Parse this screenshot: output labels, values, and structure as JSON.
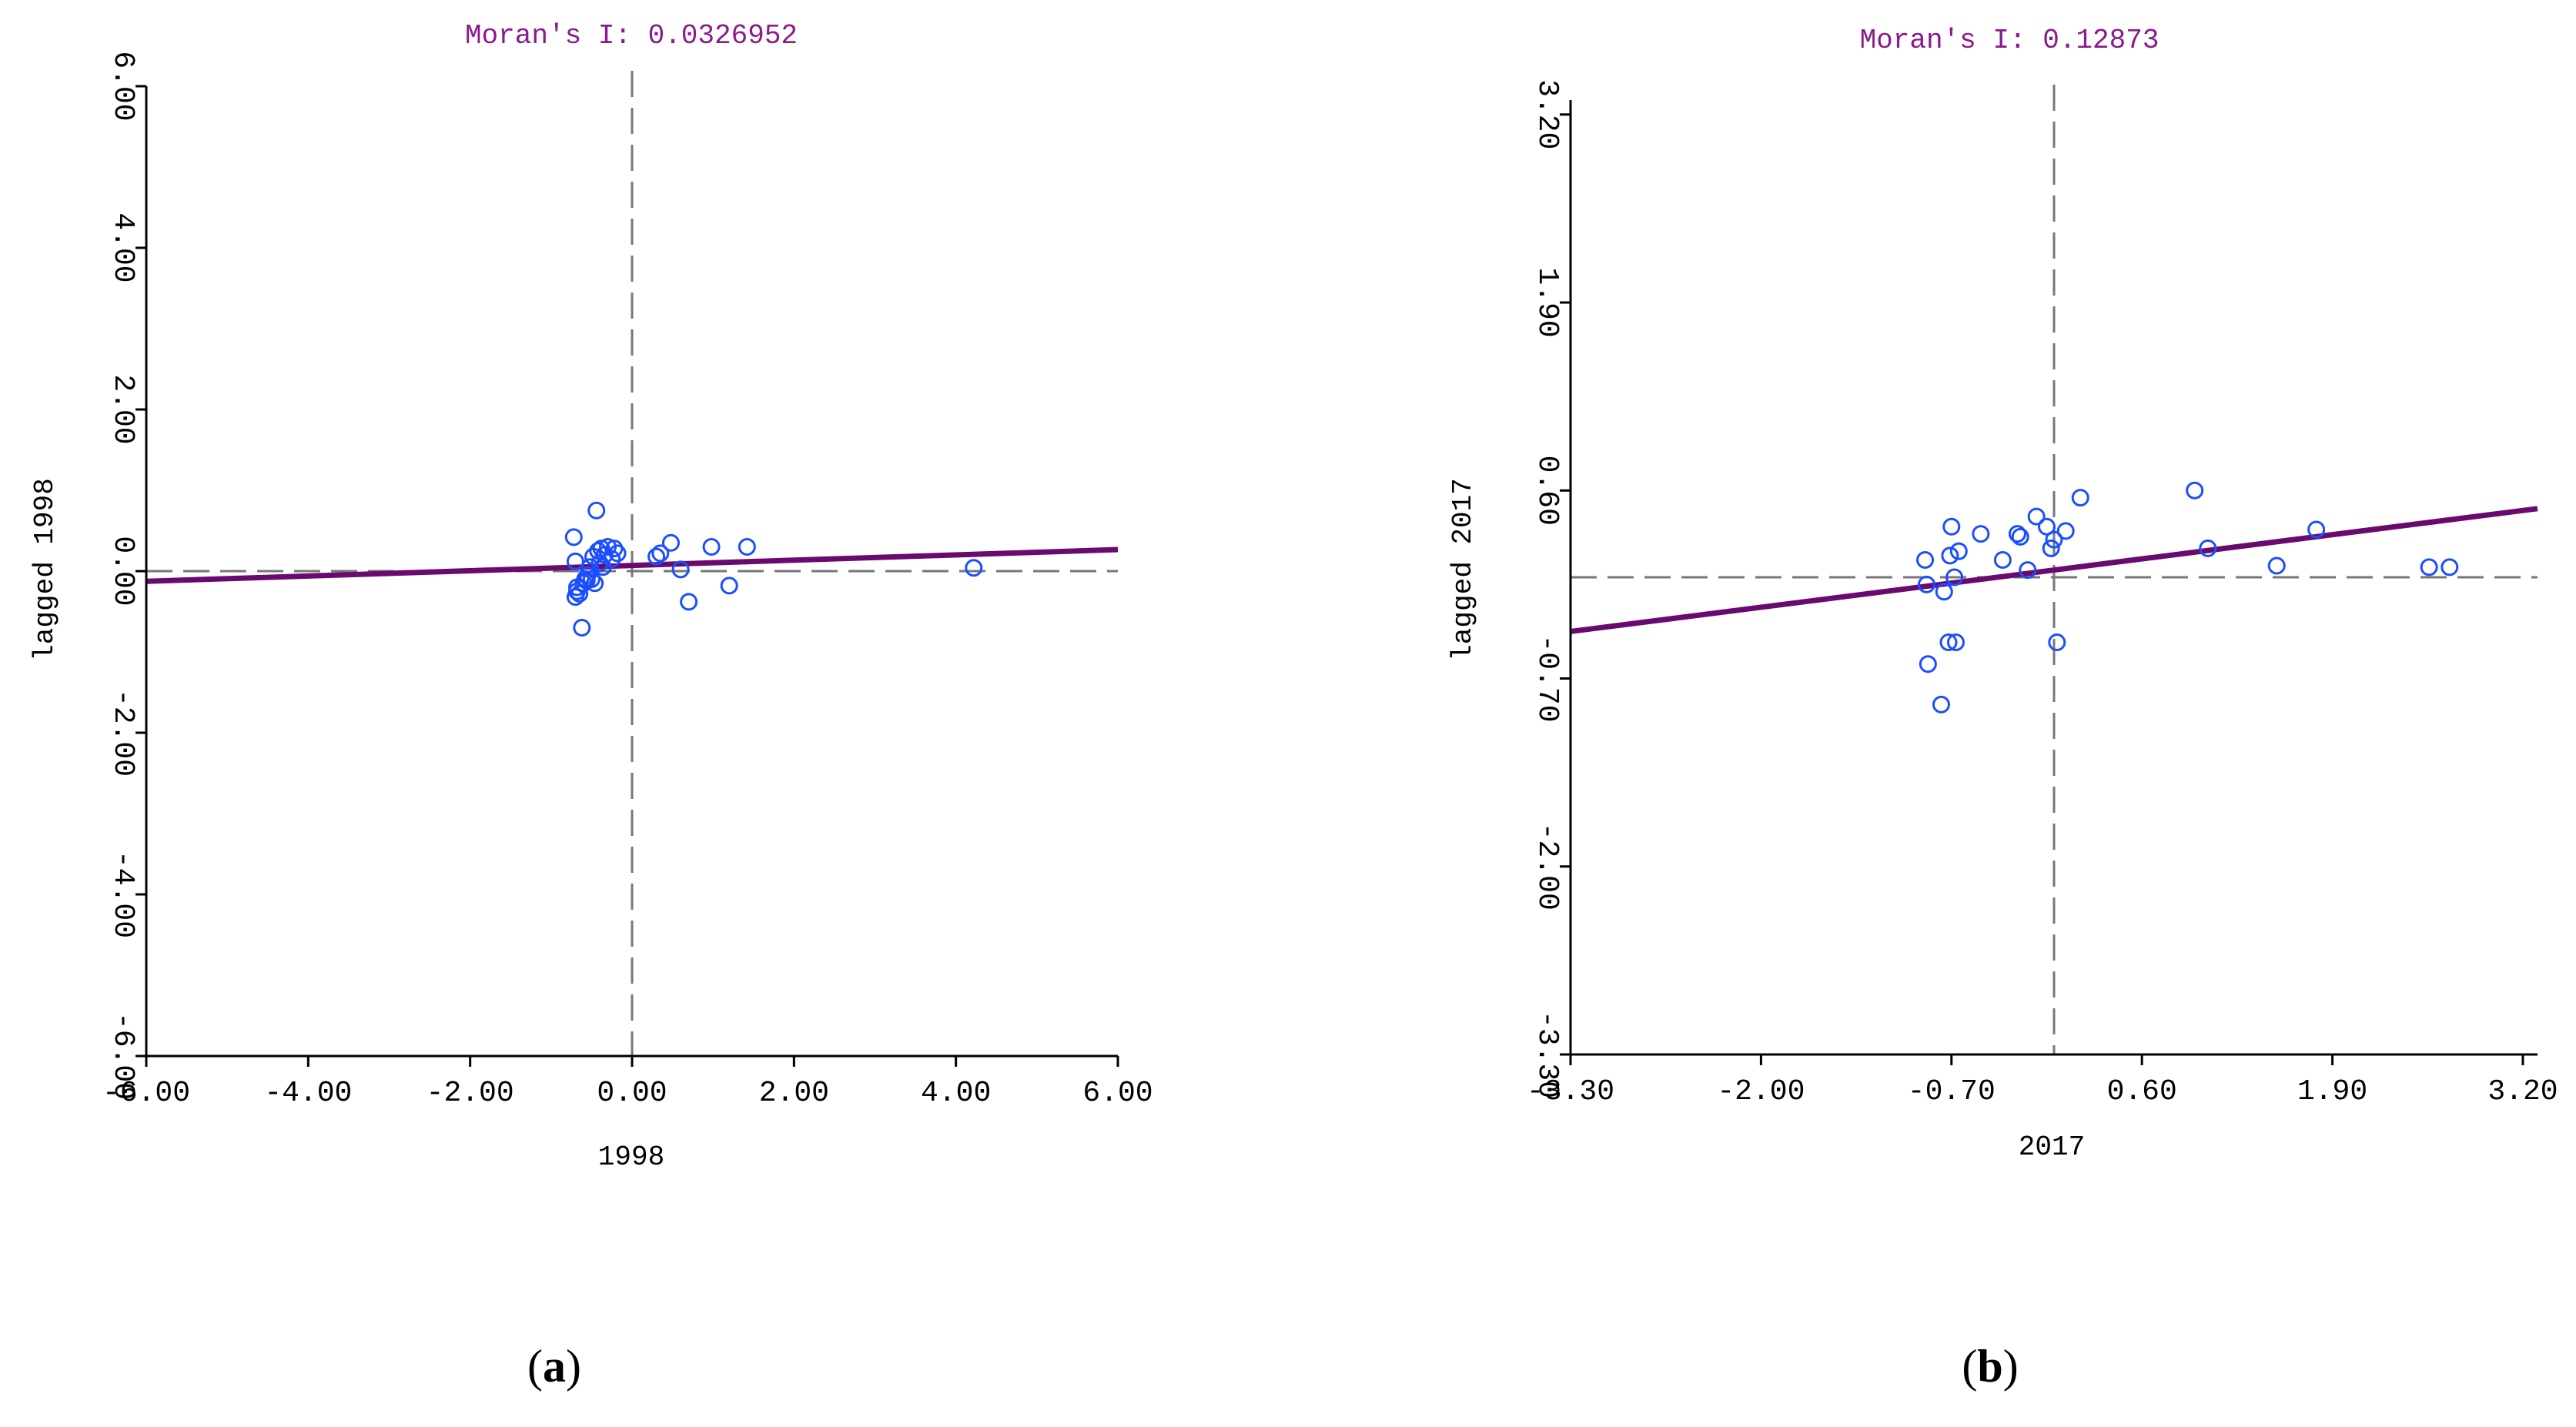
{
  "chart_data": [
    {
      "type": "scatter",
      "panel_caption": "(a)",
      "caption_letter": "a",
      "title": "Moran's I: 0.0326952",
      "xlabel": "1998",
      "ylabel": "lagged 1998",
      "xlim": [
        -6,
        6
      ],
      "ylim": [
        -6,
        6
      ],
      "xticks": [
        -6,
        -4,
        -2,
        0,
        2,
        4,
        6
      ],
      "xtick_labels": [
        "-6.00",
        "-4.00",
        "-2.00",
        "0.00",
        "2.00",
        "4.00",
        "6.00"
      ],
      "yticks": [
        -6,
        -4,
        -2,
        0,
        2,
        4,
        6
      ],
      "ytick_labels": [
        "-6.00",
        "-4.00",
        "-2.00",
        "0.00",
        "2.00",
        "4.00",
        "6.00"
      ],
      "reference_lines": {
        "x": 0,
        "y": 0
      },
      "fit_line": {
        "slope": 0.0326952,
        "intercept": 0.07
      },
      "series": [
        {
          "name": "observations",
          "x": [
            -0.72,
            -0.7,
            -0.68,
            -0.65,
            -0.62,
            -0.6,
            -0.58,
            -0.56,
            -0.55,
            -0.52,
            -0.5,
            -0.48,
            -0.46,
            -0.44,
            -0.42,
            -0.4,
            -0.38,
            -0.36,
            -0.34,
            -0.3,
            -0.25,
            -0.22,
            -0.18,
            -0.7,
            -0.68,
            0.3,
            0.35,
            0.48,
            0.6,
            0.7,
            0.98,
            1.2,
            1.42,
            4.22
          ],
          "y": [
            0.42,
            0.12,
            -0.2,
            -0.28,
            -0.7,
            -0.15,
            -0.1,
            -0.12,
            -0.05,
            0.05,
            -0.1,
            0.18,
            -0.15,
            0.75,
            0.25,
            0.1,
            0.28,
            0.05,
            0.2,
            0.3,
            0.15,
            0.28,
            0.22,
            -0.32,
            -0.25,
            0.18,
            0.22,
            0.35,
            0.02,
            -0.38,
            0.3,
            -0.18,
            0.3,
            0.04
          ]
        }
      ]
    },
    {
      "type": "scatter",
      "panel_caption": "(b)",
      "caption_letter": "b",
      "title": "Moran's I: 0.12873",
      "xlabel": "2017",
      "ylabel": "lagged 2017",
      "xlim": [
        -3.3,
        3.3
      ],
      "ylim": [
        -3.3,
        3.3
      ],
      "xticks": [
        -3.3,
        -2.0,
        -0.7,
        0.6,
        1.9,
        3.2
      ],
      "xtick_labels": [
        "-3.30",
        "-2.00",
        "-0.70",
        "0.60",
        "1.90",
        "3.20"
      ],
      "yticks": [
        -3.3,
        -2.0,
        -0.7,
        0.6,
        1.9,
        3.2
      ],
      "ytick_labels": [
        "-3.30",
        "-2.00",
        "-0.70",
        "0.60",
        "1.90",
        "3.20"
      ],
      "reference_lines": {
        "x": 0,
        "y": 0
      },
      "fit_line": {
        "slope": 0.12873,
        "intercept": 0.05
      },
      "series": [
        {
          "name": "observations",
          "x": [
            -0.88,
            -0.87,
            -0.86,
            -0.77,
            -0.75,
            -0.72,
            -0.71,
            -0.7,
            -0.68,
            -0.67,
            -0.65,
            -0.5,
            -0.35,
            -0.25,
            -0.23,
            -0.18,
            -0.12,
            -0.05,
            -0.02,
            0.0,
            0.02,
            0.08,
            0.18,
            0.96,
            1.05,
            1.52,
            1.79,
            2.56,
            2.7
          ],
          "y": [
            0.12,
            -0.05,
            -0.6,
            -0.88,
            -0.1,
            -0.45,
            0.15,
            0.35,
            0.0,
            -0.45,
            0.18,
            0.3,
            0.12,
            0.3,
            0.28,
            0.05,
            0.42,
            0.35,
            0.2,
            0.26,
            -0.45,
            0.32,
            0.55,
            0.6,
            0.2,
            0.08,
            0.33,
            0.07,
            0.07
          ]
        }
      ]
    }
  ]
}
